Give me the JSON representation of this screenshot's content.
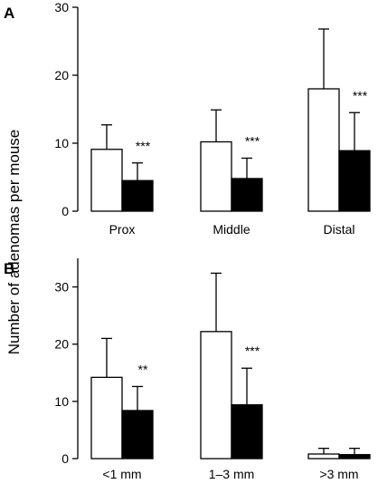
{
  "ylabel": "Number of  adenomas per mouse",
  "colors": {
    "bar_open": "#ffffff",
    "bar_filled": "#000000",
    "stroke": "#000000"
  },
  "chart_data": [
    {
      "type": "bar",
      "panel": "A",
      "categories": [
        "Prox",
        "Middle",
        "Distal"
      ],
      "ylim": [
        0,
        30
      ],
      "yticks": [
        0,
        10,
        20,
        30
      ],
      "grid": false,
      "series": [
        {
          "fill": "open",
          "values": [
            9.1,
            10.2,
            18.0
          ],
          "error": [
            3.6,
            4.7,
            8.8
          ]
        },
        {
          "fill": "filled",
          "values": [
            4.5,
            4.8,
            8.9
          ],
          "error": [
            2.6,
            3.0,
            5.6
          ]
        }
      ],
      "annotations": [
        "***",
        "***",
        "***"
      ]
    },
    {
      "type": "bar",
      "panel": "B",
      "categories": [
        "<1 mm",
        "1–3 mm",
        ">3 mm"
      ],
      "ylim": [
        0,
        35
      ],
      "yticks": [
        0,
        10,
        20,
        30
      ],
      "grid": false,
      "series": [
        {
          "fill": "open",
          "values": [
            14.2,
            22.2,
            0.8
          ],
          "error": [
            6.8,
            10.2,
            1.0
          ]
        },
        {
          "fill": "filled",
          "values": [
            8.4,
            9.4,
            0.7
          ],
          "error": [
            4.2,
            6.4,
            1.1
          ]
        }
      ],
      "annotations": [
        "**",
        "***",
        ""
      ]
    }
  ]
}
